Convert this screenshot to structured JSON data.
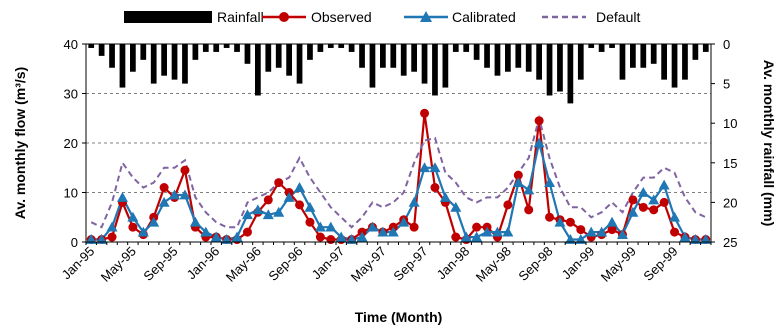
{
  "chart_data": {
    "type": "line",
    "title": "",
    "xlabel": "Time (Month)",
    "ylabel": "Av. monthly flow (m³/s)",
    "ylabel2": "Av. monthly rainfall (mm)",
    "ylim": [
      0,
      40
    ],
    "y2lim": [
      0,
      25
    ],
    "y2_inverted": true,
    "grid": "horizontal dashed",
    "legend_position": "top",
    "y_ticks": [
      "0",
      "10",
      "20",
      "30",
      "40"
    ],
    "y2_ticks": [
      "0",
      "5",
      "10",
      "15",
      "20",
      "25"
    ],
    "x_tick_labels": [
      "Jan-95",
      "May-95",
      "Sep-95",
      "Jan-96",
      "May-96",
      "Sep-96",
      "Jan-97",
      "May-97",
      "Sep-97",
      "Jan-98",
      "May-98",
      "Sep-98",
      "Jan-99",
      "May-99",
      "Sep-99"
    ],
    "x_tick_every": 4,
    "months": 60,
    "series": [
      {
        "name": "Rainfall",
        "kind": "bar",
        "axis": "right",
        "color": "#000000",
        "values": [
          0.5,
          1.5,
          3,
          5.5,
          3.5,
          2,
          5,
          4,
          4.5,
          5,
          2,
          1,
          1,
          0.5,
          1,
          2.5,
          6.5,
          3.5,
          3,
          4,
          5,
          2,
          1,
          0.5,
          0.5,
          1,
          3,
          5.5,
          3,
          3,
          4,
          3.5,
          5,
          6.5,
          5.5,
          1,
          1,
          2,
          3,
          4,
          3.5,
          3,
          3.5,
          4.5,
          6.5,
          6,
          7.5,
          4.5,
          0.5,
          1,
          0.5,
          4.5,
          3,
          3,
          2.5,
          4.5,
          5.5,
          4.5,
          2,
          1
        ]
      },
      {
        "name": "Observed",
        "kind": "line",
        "axis": "left",
        "color": "#c00000",
        "values": [
          0.5,
          0.5,
          1,
          8,
          3,
          1.5,
          5,
          11,
          9,
          14.5,
          3,
          1,
          1,
          0.5,
          0.5,
          2,
          6,
          8.5,
          12,
          10,
          7.5,
          4,
          1,
          0.5,
          0.5,
          0.5,
          2,
          3,
          2,
          3,
          4.5,
          3,
          26,
          11,
          8,
          1,
          0.5,
          3,
          3,
          1,
          7.5,
          13.5,
          6.5,
          24.5,
          5,
          4.5,
          4,
          2.5,
          1,
          1.5,
          2.5,
          1.5,
          8.5,
          7,
          6.5,
          8,
          2,
          1,
          0.5,
          0.5
        ]
      },
      {
        "name": "Calibrated",
        "kind": "line",
        "axis": "left",
        "color": "#1f77b4",
        "values": [
          0.5,
          0.5,
          3,
          9,
          5,
          2,
          4,
          8,
          9.5,
          9.5,
          4,
          2,
          1,
          0.5,
          1,
          5.5,
          6.5,
          5.5,
          6,
          9,
          11,
          7,
          3,
          3,
          1,
          0.5,
          1,
          3,
          2,
          2,
          4,
          8,
          15,
          15,
          9,
          7,
          1,
          1,
          2,
          2,
          2,
          12,
          10.5,
          20,
          12,
          4,
          0.5,
          0.5,
          2,
          2,
          4,
          1.5,
          6,
          10,
          8.5,
          11.5,
          5,
          1,
          0.5,
          0.5
        ]
      },
      {
        "name": "Default",
        "kind": "line",
        "axis": "left",
        "color": "#8064a2",
        "dash": true,
        "values": [
          4,
          3,
          8,
          16,
          13,
          11,
          12,
          15,
          15,
          16.5,
          9,
          6,
          4,
          3,
          3,
          8,
          9,
          10,
          12,
          13,
          17,
          13,
          10,
          7,
          5,
          3,
          5,
          8,
          7,
          8,
          10,
          16,
          20.5,
          21,
          14,
          12,
          9,
          8,
          9,
          9,
          11,
          14,
          17,
          25,
          17,
          11,
          7,
          7,
          5,
          6,
          8,
          6,
          10,
          13,
          13,
          15,
          14,
          9,
          6,
          5
        ]
      }
    ]
  }
}
